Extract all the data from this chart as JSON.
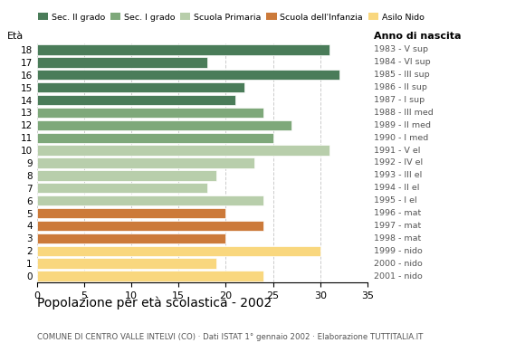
{
  "ages": [
    18,
    17,
    16,
    15,
    14,
    13,
    12,
    11,
    10,
    9,
    8,
    7,
    6,
    5,
    4,
    3,
    2,
    1,
    0
  ],
  "values": [
    31,
    18,
    32,
    22,
    21,
    24,
    27,
    25,
    31,
    23,
    19,
    18,
    24,
    20,
    24,
    20,
    30,
    19,
    24
  ],
  "right_labels": [
    "1983 - V sup",
    "1984 - VI sup",
    "1985 - III sup",
    "1986 - II sup",
    "1987 - I sup",
    "1988 - III med",
    "1989 - II med",
    "1990 - I med",
    "1991 - V el",
    "1992 - IV el",
    "1993 - III el",
    "1994 - II el",
    "1995 - I el",
    "1996 - mat",
    "1997 - mat",
    "1998 - mat",
    "1999 - nido",
    "2000 - nido",
    "2001 - nido"
  ],
  "bar_colors": [
    "#4a7c59",
    "#4a7c59",
    "#4a7c59",
    "#4a7c59",
    "#4a7c59",
    "#7ea87a",
    "#7ea87a",
    "#7ea87a",
    "#b8ceab",
    "#b8ceab",
    "#b8ceab",
    "#b8ceab",
    "#b8ceab",
    "#cc7a3a",
    "#cc7a3a",
    "#cc7a3a",
    "#f9d77e",
    "#f9d77e",
    "#f9d77e"
  ],
  "legend_labels": [
    "Sec. II grado",
    "Sec. I grado",
    "Scuola Primaria",
    "Scuola dell'Infanzia",
    "Asilo Nido"
  ],
  "legend_colors": [
    "#4a7c59",
    "#7ea87a",
    "#b8ceab",
    "#cc7a3a",
    "#f9d77e"
  ],
  "xlim": [
    0,
    35
  ],
  "xticks": [
    0,
    5,
    10,
    15,
    20,
    25,
    30,
    35
  ],
  "title": "Popolazione per età scolastica - 2002",
  "subtitle": "COMUNE DI CENTRO VALLE INTELVI (CO) · Dati ISTAT 1° gennaio 2002 · Elaborazione TUTTITALIA.IT",
  "grid_color": "#cccccc",
  "eta_label": "Età",
  "anno_label": "Anno di nascita"
}
